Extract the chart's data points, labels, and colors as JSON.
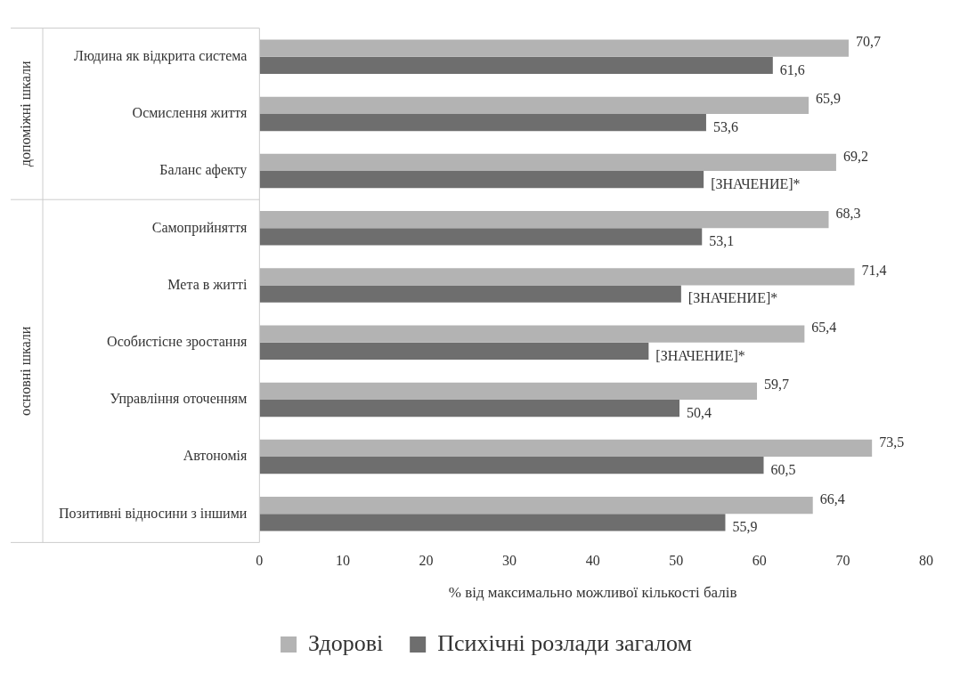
{
  "chart_data": {
    "type": "bar",
    "orientation": "horizontal",
    "xlabel": "% від максимально можливої кількості балів",
    "categories": [
      "Людина як відкрита система",
      "Осмислення життя",
      "Баланс афекту",
      "Самоприйняття",
      "Мета в житті",
      "Особистісне зростання",
      "Управління оточенням",
      "Автономія",
      "Позитивні відносини з іншими"
    ],
    "series": [
      {
        "name": "Здорові",
        "color": "#b3b3b3",
        "values": [
          70.7,
          65.9,
          69.2,
          68.3,
          71.4,
          65.4,
          59.7,
          73.5,
          66.4
        ],
        "value_labels": [
          "70,7",
          "65,9",
          "69,2",
          "68,3",
          "71,4",
          "65,4",
          "59,7",
          "73,5",
          "66,4"
        ]
      },
      {
        "name": "Психічні розлади загалом",
        "color": "#6e6e6e",
        "values": [
          61.6,
          53.6,
          53.3,
          53.1,
          50.6,
          46.7,
          50.4,
          60.5,
          55.9
        ],
        "value_labels": [
          "61,6",
          "53,6",
          "[ЗНАЧЕНИЕ]*",
          "53,1",
          "[ЗНАЧЕНИЕ]*",
          "[ЗНАЧЕНИЕ]*",
          "50,4",
          "60,5",
          "55,9"
        ]
      }
    ],
    "xlim": [
      0,
      80
    ],
    "xticks": [
      0,
      10,
      20,
      30,
      40,
      50,
      60,
      70,
      80
    ],
    "grid": false,
    "legend": "bottom",
    "annotations": [
      "допоміжні шкали",
      "основні шкали"
    ]
  }
}
